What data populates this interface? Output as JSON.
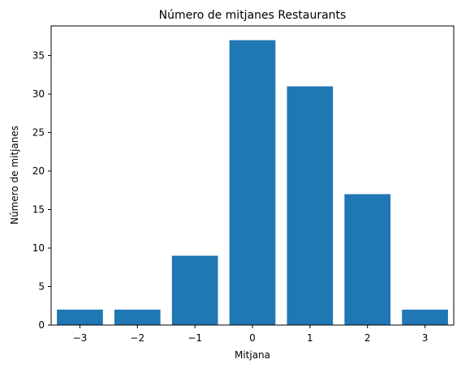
{
  "chart_data": {
    "type": "bar",
    "title": "Número de mitjanes Restaurants",
    "xlabel": "Mitjana",
    "ylabel": "Número de mitjanes",
    "categories": [
      -3,
      -2,
      -1,
      0,
      1,
      2,
      3
    ],
    "values": [
      2,
      2,
      9,
      37,
      31,
      17,
      2
    ],
    "xlim": [
      -3.5,
      3.5
    ],
    "ylim": [
      0,
      38.85
    ],
    "xticks": [
      -3,
      -2,
      -1,
      0,
      1,
      2,
      3
    ],
    "xtick_labels": [
      "−3",
      "−2",
      "−1",
      "0",
      "1",
      "2",
      "3"
    ],
    "yticks": [
      0,
      5,
      10,
      15,
      20,
      25,
      30,
      35
    ],
    "ytick_labels": [
      "0",
      "5",
      "10",
      "15",
      "20",
      "25",
      "30",
      "35"
    ],
    "grid": false,
    "legend": "none",
    "bar_color": "#1f77b4"
  }
}
